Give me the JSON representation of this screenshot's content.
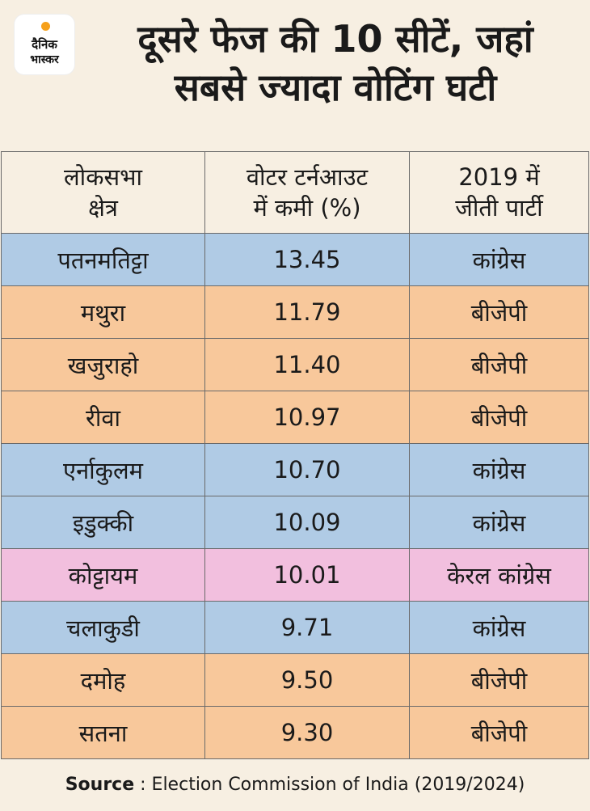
{
  "logo": {
    "line1": "दैनिक",
    "line2": "भास्कर"
  },
  "title": {
    "line1": "दूसरे फेज की 10 सीटें, जहां",
    "line2": "सबसे ज्यादा वोटिंग घटी"
  },
  "table": {
    "headers": [
      {
        "line1": "लोकसभा",
        "line2": "क्षेत्र"
      },
      {
        "line1": "वोटर टर्नआउट",
        "line2": "में कमी (%)"
      },
      {
        "line1": "2019 में",
        "line2": "जीती पार्टी"
      }
    ],
    "rows": [
      {
        "seat": "पतनमतिट्टा",
        "drop": "13.45",
        "party": "कांग्रेस",
        "color": "#b0cbe5"
      },
      {
        "seat": "मथुरा",
        "drop": "11.79",
        "party": "बीजेपी",
        "color": "#f8c89b"
      },
      {
        "seat": "खजुराहो",
        "drop": "11.40",
        "party": "बीजेपी",
        "color": "#f8c89b"
      },
      {
        "seat": "रीवा",
        "drop": "10.97",
        "party": "बीजेपी",
        "color": "#f8c89b"
      },
      {
        "seat": "एर्नाकुलम",
        "drop": "10.70",
        "party": "कांग्रेस",
        "color": "#b0cbe5"
      },
      {
        "seat": "इडुक्की",
        "drop": "10.09",
        "party": "कांग्रेस",
        "color": "#b0cbe5"
      },
      {
        "seat": "कोट्टायम",
        "drop": "10.01",
        "party": "केरल कांग्रेस",
        "color": "#f2bfde"
      },
      {
        "seat": "चलाकुडी",
        "drop": "9.71",
        "party": "कांग्रेस",
        "color": "#b0cbe5"
      },
      {
        "seat": "दमोह",
        "drop": "9.50",
        "party": "बीजेपी",
        "color": "#f8c89b"
      },
      {
        "seat": "सतना",
        "drop": "9.30",
        "party": "बीजेपी",
        "color": "#f8c89b"
      }
    ]
  },
  "source": {
    "label": "Source",
    "separator": " : ",
    "text": "Election Commission of India (2019/2024)"
  }
}
